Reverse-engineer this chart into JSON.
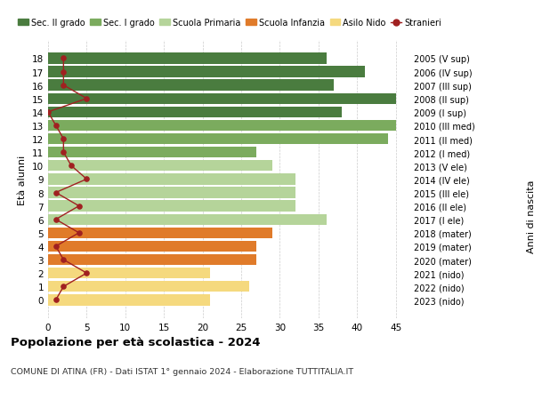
{
  "ages": [
    18,
    17,
    16,
    15,
    14,
    13,
    12,
    11,
    10,
    9,
    8,
    7,
    6,
    5,
    4,
    3,
    2,
    1,
    0
  ],
  "anni_nascita": [
    "2005 (V sup)",
    "2006 (IV sup)",
    "2007 (III sup)",
    "2008 (II sup)",
    "2009 (I sup)",
    "2010 (III med)",
    "2011 (II med)",
    "2012 (I med)",
    "2013 (V ele)",
    "2014 (IV ele)",
    "2015 (III ele)",
    "2016 (II ele)",
    "2017 (I ele)",
    "2018 (mater)",
    "2019 (mater)",
    "2020 (mater)",
    "2021 (nido)",
    "2022 (nido)",
    "2023 (nido)"
  ],
  "bar_values": [
    36,
    41,
    37,
    45,
    38,
    45,
    44,
    27,
    29,
    32,
    32,
    32,
    36,
    29,
    27,
    27,
    21,
    26,
    21
  ],
  "bar_colors": [
    "#4a7c3f",
    "#4a7c3f",
    "#4a7c3f",
    "#4a7c3f",
    "#4a7c3f",
    "#7bab5e",
    "#7bab5e",
    "#7bab5e",
    "#b5d49a",
    "#b5d49a",
    "#b5d49a",
    "#b5d49a",
    "#b5d49a",
    "#e07b2a",
    "#e07b2a",
    "#e07b2a",
    "#f5d97e",
    "#f5d97e",
    "#f5d97e"
  ],
  "stranieri_values": [
    2,
    2,
    2,
    5,
    0,
    1,
    2,
    2,
    3,
    5,
    1,
    4,
    1,
    4,
    1,
    2,
    5,
    2,
    1
  ],
  "stranieri_color": "#a02020",
  "legend_labels": [
    "Sec. II grado",
    "Sec. I grado",
    "Scuola Primaria",
    "Scuola Infanzia",
    "Asilo Nido",
    "Stranieri"
  ],
  "legend_colors": [
    "#4a7c3f",
    "#7bab5e",
    "#b5d49a",
    "#e07b2a",
    "#f5d97e",
    "#a02020"
  ],
  "xlabel_values": [
    0,
    5,
    10,
    15,
    20,
    25,
    30,
    35,
    40,
    45
  ],
  "xlim": [
    0,
    47
  ],
  "ylabel_left": "Età alunni",
  "ylabel_right": "Anni di nascita",
  "title": "Popolazione per età scolastica - 2024",
  "subtitle": "COMUNE DI ATINA (FR) - Dati ISTAT 1° gennaio 2024 - Elaborazione TUTTITALIA.IT",
  "background_color": "#ffffff",
  "grid_color": "#cccccc"
}
